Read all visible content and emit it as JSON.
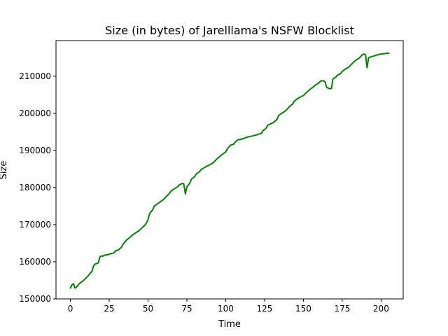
{
  "chart_data": {
    "type": "line",
    "title": "Size (in bytes) of Jarelllama's NSFW Blocklist",
    "xlabel": "Time",
    "ylabel": "Size",
    "xlim": [
      -9.25,
      214.25
    ],
    "ylim": [
      150000,
      219600
    ],
    "x_ticks": [
      0,
      25,
      50,
      75,
      100,
      125,
      150,
      175,
      200
    ],
    "y_ticks": [
      150000,
      160000,
      170000,
      180000,
      190000,
      200000,
      210000
    ],
    "grid": false,
    "legend": "none",
    "series": [
      {
        "color": "#008000",
        "points": [
          [
            0,
            152900
          ],
          [
            1,
            153800
          ],
          [
            2,
            154100
          ],
          [
            3,
            152900
          ],
          [
            4,
            153200
          ],
          [
            5,
            153700
          ],
          [
            6,
            154200
          ],
          [
            8,
            154800
          ],
          [
            10,
            155600
          ],
          [
            12,
            156500
          ],
          [
            14,
            157500
          ],
          [
            15,
            159000
          ],
          [
            16,
            159400
          ],
          [
            18,
            159700
          ],
          [
            19,
            161300
          ],
          [
            20,
            161600
          ],
          [
            21,
            161500
          ],
          [
            22,
            161800
          ],
          [
            24,
            161900
          ],
          [
            26,
            162200
          ],
          [
            28,
            162400
          ],
          [
            29,
            162900
          ],
          [
            31,
            163200
          ],
          [
            33,
            164000
          ],
          [
            34,
            164800
          ],
          [
            35,
            165200
          ],
          [
            36,
            165800
          ],
          [
            38,
            166500
          ],
          [
            40,
            167200
          ],
          [
            42,
            167800
          ],
          [
            44,
            168300
          ],
          [
            46,
            169100
          ],
          [
            48,
            169900
          ],
          [
            49,
            170500
          ],
          [
            50,
            171400
          ],
          [
            51,
            173000
          ],
          [
            53,
            174000
          ],
          [
            54,
            175000
          ],
          [
            56,
            175600
          ],
          [
            58,
            176200
          ],
          [
            60,
            176800
          ],
          [
            61,
            177300
          ],
          [
            63,
            178100
          ],
          [
            65,
            179100
          ],
          [
            67,
            179700
          ],
          [
            69,
            180200
          ],
          [
            70,
            180700
          ],
          [
            72,
            181100
          ],
          [
            73,
            181000
          ],
          [
            74,
            178300
          ],
          [
            75,
            180200
          ],
          [
            76,
            180700
          ],
          [
            77,
            181300
          ],
          [
            78,
            182300
          ],
          [
            80,
            182900
          ],
          [
            81,
            183700
          ],
          [
            83,
            184200
          ],
          [
            84,
            184800
          ],
          [
            86,
            185300
          ],
          [
            88,
            185800
          ],
          [
            90,
            186200
          ],
          [
            92,
            186700
          ],
          [
            94,
            187600
          ],
          [
            96,
            188300
          ],
          [
            98,
            189000
          ],
          [
            100,
            189600
          ],
          [
            101,
            190400
          ],
          [
            103,
            191400
          ],
          [
            105,
            191700
          ],
          [
            107,
            192600
          ],
          [
            108,
            192900
          ],
          [
            110,
            193000
          ],
          [
            112,
            193300
          ],
          [
            114,
            193600
          ],
          [
            116,
            193800
          ],
          [
            118,
            194000
          ],
          [
            120,
            194200
          ],
          [
            122,
            194500
          ],
          [
            123,
            194600
          ],
          [
            124,
            195300
          ],
          [
            126,
            196000
          ],
          [
            127,
            196800
          ],
          [
            129,
            197200
          ],
          [
            131,
            197600
          ],
          [
            133,
            198400
          ],
          [
            134,
            199400
          ],
          [
            136,
            200000
          ],
          [
            138,
            200500
          ],
          [
            139,
            200900
          ],
          [
            140,
            201300
          ],
          [
            141,
            201800
          ],
          [
            143,
            202500
          ],
          [
            144,
            203200
          ],
          [
            146,
            203900
          ],
          [
            148,
            204400
          ],
          [
            150,
            204800
          ],
          [
            152,
            205600
          ],
          [
            154,
            206400
          ],
          [
            156,
            207000
          ],
          [
            158,
            207700
          ],
          [
            160,
            208200
          ],
          [
            161,
            208700
          ],
          [
            163,
            208800
          ],
          [
            164,
            208400
          ],
          [
            165,
            207000
          ],
          [
            167,
            206600
          ],
          [
            168,
            206700
          ],
          [
            169,
            209300
          ],
          [
            171,
            209800
          ],
          [
            172,
            210300
          ],
          [
            174,
            210700
          ],
          [
            175,
            211300
          ],
          [
            177,
            211900
          ],
          [
            179,
            212400
          ],
          [
            180,
            212800
          ],
          [
            182,
            213700
          ],
          [
            184,
            214400
          ],
          [
            186,
            214900
          ],
          [
            188,
            215800
          ],
          [
            189,
            216000
          ],
          [
            190,
            215800
          ],
          [
            191,
            212300
          ],
          [
            192,
            215000
          ],
          [
            194,
            215300
          ],
          [
            196,
            215500
          ],
          [
            198,
            215800
          ],
          [
            200,
            216000
          ],
          [
            202,
            216100
          ],
          [
            204,
            216200
          ],
          [
            205,
            216200
          ]
        ]
      }
    ]
  }
}
